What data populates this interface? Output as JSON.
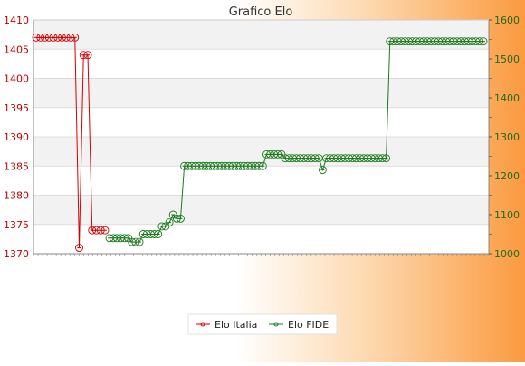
{
  "chart_data": {
    "type": "line",
    "title": "Grafico Elo",
    "x_tick_labels_note": "",
    "left_axis": {
      "ylim": [
        1370,
        1410
      ],
      "ticks": [
        1370,
        1375,
        1380,
        1385,
        1390,
        1395,
        1400,
        1405,
        1410
      ]
    },
    "right_axis": {
      "ylim": [
        1000,
        1600
      ],
      "ticks": [
        1000,
        1100,
        1200,
        1300,
        1400,
        1500,
        1600
      ]
    },
    "legend": {
      "position": "bottom"
    },
    "grid": true,
    "series": [
      {
        "name": "Elo Italia",
        "axis": "left",
        "color": "#d40000",
        "values": [
          1407,
          1407,
          1407,
          1407,
          1407,
          1407,
          1407,
          1407,
          1407,
          1407,
          1371,
          1404,
          1404,
          1374,
          1374,
          1374,
          1374
        ]
      },
      {
        "name": "Elo FIDE",
        "axis": "right",
        "color": "#1c7a1c",
        "values": [
          1040,
          1040,
          1040,
          1040,
          1040,
          1040,
          1030,
          1030,
          1030,
          1050,
          1050,
          1050,
          1050,
          1050,
          1070,
          1070,
          1080,
          1100,
          1090,
          1090,
          1225,
          1225,
          1225,
          1225,
          1225,
          1225,
          1225,
          1225,
          1225,
          1225,
          1225,
          1225,
          1225,
          1225,
          1225,
          1225,
          1225,
          1225,
          1225,
          1225,
          1225,
          1225,
          1255,
          1255,
          1255,
          1255,
          1255,
          1245,
          1245,
          1245,
          1245,
          1245,
          1245,
          1245,
          1245,
          1245,
          1245,
          1215,
          1245,
          1245,
          1245,
          1245,
          1245,
          1245,
          1245,
          1245,
          1245,
          1245,
          1245,
          1245,
          1245,
          1245,
          1245,
          1245,
          1245,
          1545,
          1545,
          1545,
          1545,
          1545,
          1545,
          1545,
          1545,
          1545,
          1545,
          1545,
          1545,
          1545,
          1545,
          1545,
          1545,
          1545,
          1545,
          1545,
          1545,
          1545,
          1545,
          1545,
          1545,
          1545,
          1545
        ]
      }
    ]
  }
}
